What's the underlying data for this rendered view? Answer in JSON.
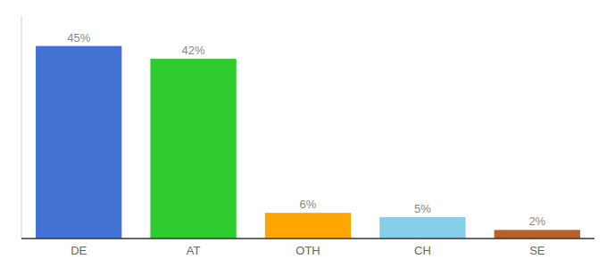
{
  "chart_data": {
    "type": "bar",
    "categories": [
      "DE",
      "AT",
      "OTH",
      "CH",
      "SE"
    ],
    "values": [
      45,
      42,
      6,
      5,
      2
    ],
    "value_labels": [
      "45%",
      "42%",
      "6%",
      "5%",
      "2%"
    ],
    "colors": [
      "#4472d4",
      "#2ecc2e",
      "#ffa500",
      "#87ceeb",
      "#b8622a"
    ],
    "ylim": [
      0,
      52
    ],
    "data_labels": true,
    "tick_labels": "x"
  }
}
